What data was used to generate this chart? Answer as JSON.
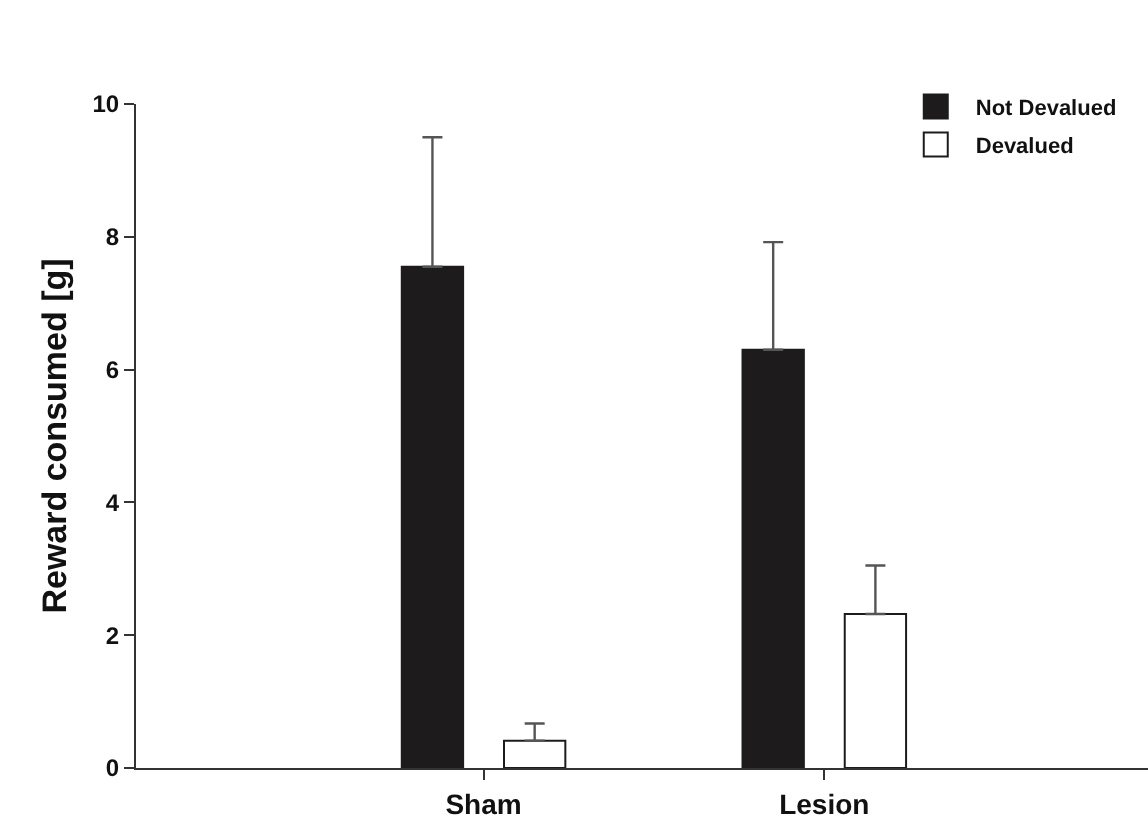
{
  "chart_data": {
    "type": "bar",
    "ylabel": "Reward consumed [g]",
    "categories": [
      "Sham",
      "Lesion"
    ],
    "series": [
      {
        "name": "Not Devalued",
        "color": "#1e1b1d",
        "values": [
          7.55,
          6.3
        ],
        "errors": [
          [
            7.55,
            9.5
          ],
          [
            6.3,
            7.92
          ]
        ]
      },
      {
        "name": "Devalued",
        "color": "#ffffff",
        "values": [
          0.41,
          2.32
        ],
        "errors": [
          [
            0.41,
            0.67
          ],
          [
            2.32,
            3.05
          ]
        ]
      }
    ],
    "ylim": [
      0,
      10
    ],
    "yticks": [
      0,
      2,
      4,
      6,
      8,
      10
    ],
    "grid": false,
    "legend": "top right"
  }
}
